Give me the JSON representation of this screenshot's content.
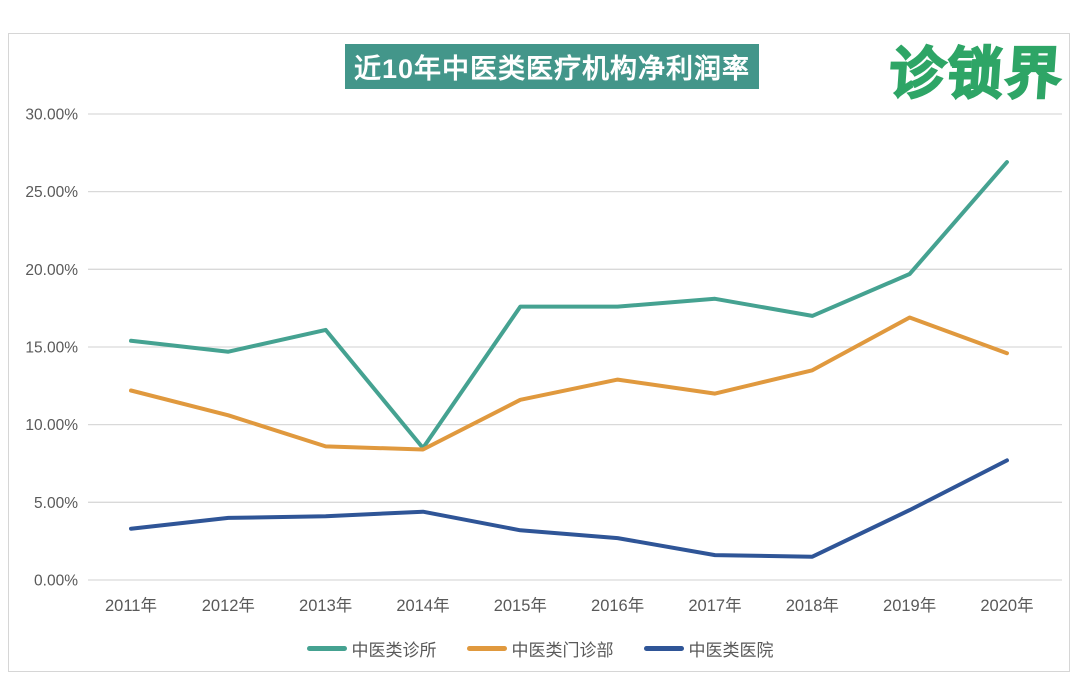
{
  "page": {
    "banner_title": "近10年中医类医疗机构净利润率",
    "logo_text": "诊锁界"
  },
  "chart_data": {
    "type": "line",
    "title": "近10年中医类医疗机构净利润率",
    "categories": [
      "2011年",
      "2012年",
      "2013年",
      "2014年",
      "2015年",
      "2016年",
      "2017年",
      "2018年",
      "2019年",
      "2020年"
    ],
    "series": [
      {
        "name": "中医类诊所",
        "color": "#45a291",
        "values": [
          15.4,
          14.7,
          16.1,
          8.5,
          17.6,
          17.6,
          18.1,
          17.0,
          19.7,
          26.9
        ]
      },
      {
        "name": "中医类门诊部",
        "color": "#e0993e",
        "values": [
          12.2,
          10.6,
          8.6,
          8.4,
          11.6,
          12.9,
          12.0,
          13.5,
          16.9,
          14.6
        ]
      },
      {
        "name": "中医类医院",
        "color": "#2f5597",
        "values": [
          3.3,
          4.0,
          4.1,
          4.4,
          3.2,
          2.7,
          1.6,
          1.5,
          4.5,
          7.7
        ]
      }
    ],
    "xlabel": "",
    "ylabel": "",
    "y_axis": {
      "min": 0,
      "max": 30,
      "step": 5,
      "tick_labels": [
        "0.00%",
        "5.00%",
        "10.00%",
        "15.00%",
        "20.00%",
        "25.00%",
        "30.00%"
      ]
    },
    "grid": true,
    "legend_position": "bottom"
  },
  "colors": {
    "banner_bg": "#43968a",
    "banner_text": "#ffffff",
    "logo_green": "#2ea566",
    "gridline": "#d9d9d9",
    "axis_text": "#595959",
    "panel_border": "#d6d6d6"
  }
}
